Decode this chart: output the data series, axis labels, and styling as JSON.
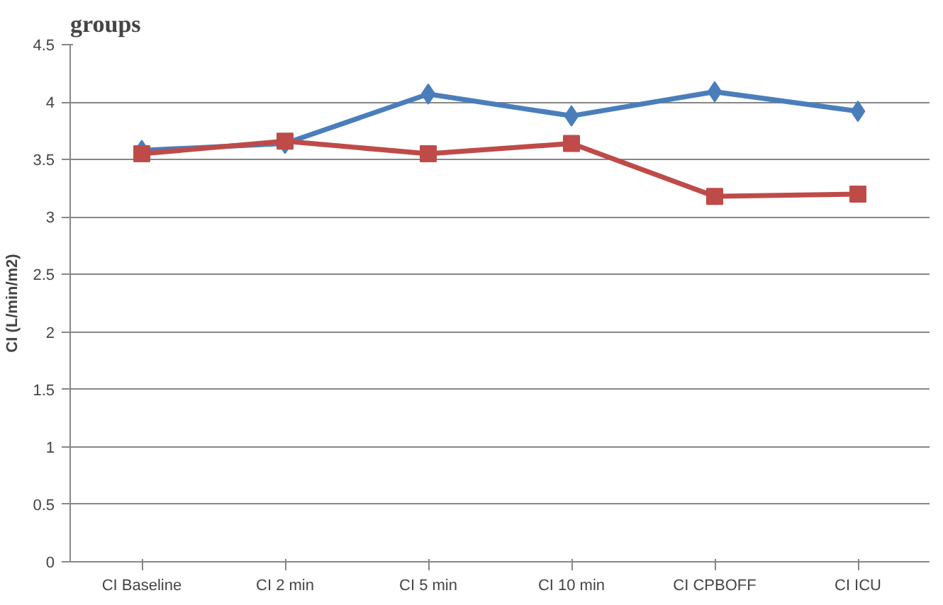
{
  "chart_data": {
    "type": "line",
    "title": "groups",
    "ylabel": "CI (L/min/m2)",
    "categories": [
      "CI Baseline",
      "CI 2 min",
      "CI 5 min",
      "CI 10 min",
      "CI CPBOFF",
      "CI ICU"
    ],
    "series": [
      {
        "color": "#4a7ebb",
        "marker": "diamond",
        "values": [
          3.58,
          3.64,
          4.07,
          3.88,
          4.09,
          3.92
        ]
      },
      {
        "color": "#be4b48",
        "marker": "square",
        "values": [
          3.55,
          3.66,
          3.55,
          3.64,
          3.18,
          3.2
        ]
      }
    ],
    "ylim": [
      0,
      4.5
    ],
    "yticks": [
      0,
      0.5,
      1,
      1.5,
      2,
      2.5,
      3,
      3.5,
      4,
      4.5
    ],
    "grid": "y",
    "line_style": "solid"
  }
}
